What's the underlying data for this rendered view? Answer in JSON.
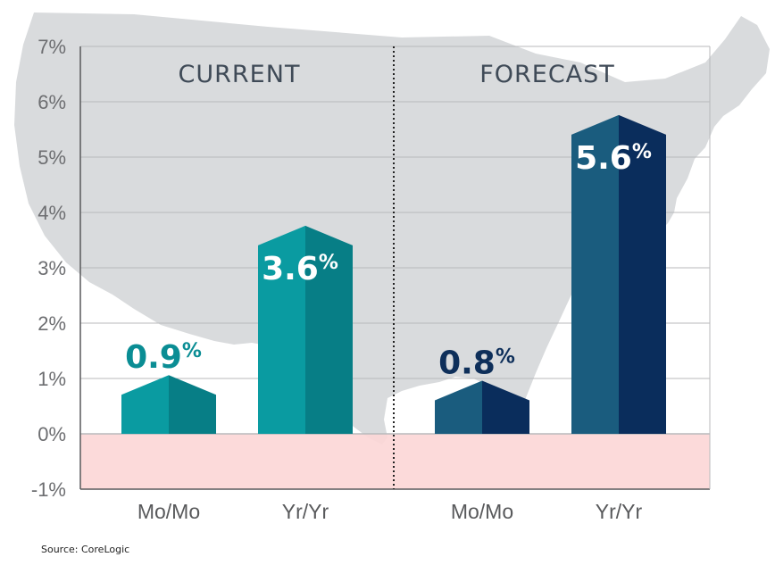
{
  "chart_data": {
    "type": "bar",
    "ylim": [
      -1,
      7
    ],
    "yticks": [
      -1,
      0,
      1,
      2,
      3,
      4,
      5,
      6,
      7
    ],
    "ytick_labels": [
      "-1%",
      "0%",
      "1%",
      "2%",
      "3%",
      "4%",
      "5%",
      "6%",
      "7%"
    ],
    "grid": true,
    "panels": [
      {
        "title": "CURRENT",
        "categories": [
          "Mo/Mo",
          "Yr/Yr"
        ],
        "values": [
          0.9,
          3.6
        ],
        "labels": [
          "0.9",
          "3.6"
        ],
        "colors": {
          "left": "#0a9ba1",
          "right": "#077e86",
          "label_inside": "#ffffff",
          "label_outside": "#0a8d94"
        }
      },
      {
        "title": "FORECAST",
        "categories": [
          "Mo/Mo",
          "Yr/Yr"
        ],
        "values": [
          0.8,
          5.6
        ],
        "labels": [
          "0.8",
          "5.6"
        ],
        "colors": {
          "left": "#1a5c7e",
          "right": "#0a2d5c",
          "label_inside": "#ffffff",
          "label_outside": "#0e2f5a"
        }
      }
    ],
    "percent_sign": "%",
    "colors": {
      "negative_band": "#fcd6d6",
      "map": "#d9dbdd",
      "grid": "#b8b9bb",
      "axis": "#58595b"
    }
  },
  "source": "Source: CoreLogic"
}
